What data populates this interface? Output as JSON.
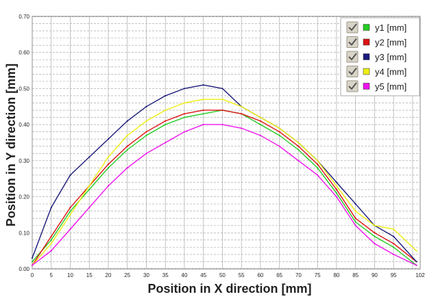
{
  "chart_data": {
    "type": "line",
    "title": "",
    "xlabel": "Position in X direction [mm]",
    "ylabel": "Position in Y direction [mm]",
    "xlim": [
      0,
      102
    ],
    "ylim": [
      0,
      0.7
    ],
    "x_ticks": [
      "0",
      "5",
      "10",
      "15",
      "20",
      "25",
      "30",
      "35",
      "40",
      "45",
      "50",
      "55",
      "60",
      "65",
      "70",
      "75",
      "80",
      "85",
      "90",
      "95",
      "102"
    ],
    "y_ticks": [
      "0.00",
      "0.10",
      "0.20",
      "0.30",
      "0.40",
      "0.50",
      "0.60",
      "0.70"
    ],
    "grid": "dashed",
    "legend_position": "top-right",
    "legend_items": [
      {
        "label": "y1 [mm]",
        "checked": true
      },
      {
        "label": "y2 [mm]",
        "checked": true
      },
      {
        "label": "y3 [mm]",
        "checked": true
      },
      {
        "label": "y4 [mm]",
        "checked": true
      },
      {
        "label": "y5 [mm]",
        "checked": true
      }
    ],
    "x": [
      0,
      5,
      10,
      15,
      20,
      25,
      30,
      35,
      40,
      45,
      50,
      55,
      60,
      65,
      70,
      75,
      80,
      85,
      90,
      95,
      101
    ],
    "series": [
      {
        "name": "y1 [mm]",
        "color": "#22cc22",
        "values": [
          0.02,
          0.08,
          0.16,
          0.22,
          0.28,
          0.33,
          0.37,
          0.4,
          0.42,
          0.43,
          0.44,
          0.43,
          0.4,
          0.37,
          0.33,
          0.28,
          0.21,
          0.13,
          0.09,
          0.06,
          0.01
        ]
      },
      {
        "name": "y2 [mm]",
        "color": "#dd1111",
        "values": [
          0.01,
          0.09,
          0.17,
          0.23,
          0.29,
          0.34,
          0.38,
          0.41,
          0.43,
          0.44,
          0.44,
          0.43,
          0.41,
          0.38,
          0.34,
          0.29,
          0.22,
          0.14,
          0.1,
          0.07,
          0.02
        ]
      },
      {
        "name": "y3 [mm]",
        "color": "#1a1a7a",
        "values": [
          0.03,
          0.17,
          0.26,
          0.31,
          0.36,
          0.41,
          0.45,
          0.48,
          0.5,
          0.51,
          0.5,
          0.45,
          0.42,
          0.39,
          0.35,
          0.3,
          0.24,
          0.18,
          0.12,
          0.09,
          0.02
        ]
      },
      {
        "name": "y4 [mm]",
        "color": "#eeee11",
        "values": [
          0.01,
          0.07,
          0.15,
          0.23,
          0.31,
          0.37,
          0.41,
          0.44,
          0.46,
          0.47,
          0.47,
          0.45,
          0.42,
          0.39,
          0.35,
          0.3,
          0.23,
          0.16,
          0.12,
          0.11,
          0.05
        ]
      },
      {
        "name": "y5 [mm]",
        "color": "#ee11ee",
        "values": [
          0.01,
          0.05,
          0.11,
          0.17,
          0.23,
          0.28,
          0.32,
          0.35,
          0.38,
          0.4,
          0.4,
          0.39,
          0.37,
          0.34,
          0.3,
          0.26,
          0.2,
          0.12,
          0.07,
          0.04,
          0.01
        ]
      }
    ]
  }
}
